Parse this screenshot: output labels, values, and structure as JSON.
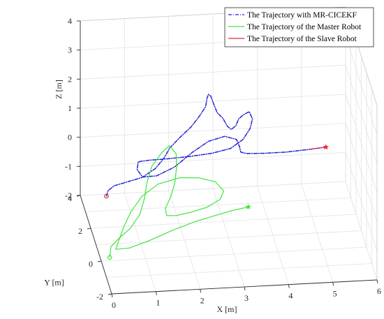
{
  "chart_data": {
    "type": "line",
    "projection": "3d",
    "title": "",
    "xlabel": "X [m]",
    "ylabel": "Y [m]",
    "zlabel": "Z [m]",
    "xlim": [
      0,
      6
    ],
    "ylim": [
      -2,
      4
    ],
    "zlim": [
      -2,
      4
    ],
    "x_ticks": [
      "0",
      "1",
      "2",
      "3",
      "4",
      "5",
      "6"
    ],
    "y_ticks": [
      "-2",
      "0",
      "2",
      "4"
    ],
    "z_ticks": [
      "-2",
      "-1",
      "0",
      "1",
      "2",
      "3",
      "4"
    ],
    "grid": true,
    "legend_position": "top-right",
    "series": [
      {
        "name": "The Trajectory with MR-CICEKF",
        "color": "#1f1fd6",
        "style": "dash-dot",
        "points": [
          [
            0.2,
            0.7,
            -0.18
          ],
          [
            0.25,
            0.8,
            -0.05
          ],
          [
            0.4,
            0.9,
            0.05
          ],
          [
            0.7,
            1.0,
            0.1
          ],
          [
            1.05,
            1.05,
            0.2
          ],
          [
            1.35,
            1.1,
            0.45
          ],
          [
            1.55,
            1.15,
            0.75
          ],
          [
            1.7,
            1.25,
            1.05
          ],
          [
            1.95,
            1.35,
            1.35
          ],
          [
            2.2,
            1.4,
            1.65
          ],
          [
            2.4,
            1.5,
            1.95
          ],
          [
            2.55,
            1.6,
            2.2
          ],
          [
            2.6,
            1.75,
            2.4
          ],
          [
            2.65,
            1.9,
            2.45
          ],
          [
            2.72,
            2.05,
            2.3
          ],
          [
            2.8,
            2.2,
            1.95
          ],
          [
            2.9,
            2.35,
            1.55
          ],
          [
            3.05,
            2.5,
            1.25
          ],
          [
            3.15,
            2.55,
            0.95
          ],
          [
            3.25,
            2.6,
            0.8
          ],
          [
            3.35,
            2.55,
            0.95
          ],
          [
            3.4,
            2.5,
            1.2
          ],
          [
            3.5,
            2.4,
            1.4
          ],
          [
            3.62,
            2.3,
            1.55
          ],
          [
            3.68,
            2.2,
            1.35
          ],
          [
            3.62,
            2.15,
            1.05
          ],
          [
            3.45,
            2.05,
            0.75
          ],
          [
            3.15,
            1.9,
            0.55
          ],
          [
            2.7,
            1.75,
            0.5
          ],
          [
            2.2,
            1.55,
            0.55
          ],
          [
            1.65,
            1.3,
            0.65
          ],
          [
            1.2,
            1.1,
            0.75
          ],
          [
            0.95,
            0.95,
            0.8
          ],
          [
            0.9,
            0.75,
            0.65
          ],
          [
            1.0,
            0.55,
            0.5
          ],
          [
            1.3,
            0.4,
            0.6
          ],
          [
            1.7,
            0.35,
            0.9
          ],
          [
            2.1,
            0.45,
            1.3
          ],
          [
            2.5,
            0.65,
            1.55
          ],
          [
            2.9,
            0.9,
            1.55
          ],
          [
            3.2,
            1.2,
            1.25
          ],
          [
            3.3,
            1.45,
            0.85
          ],
          [
            3.35,
            1.65,
            0.55
          ],
          [
            3.5,
            1.8,
            0.4
          ],
          [
            3.9,
            1.85,
            0.35
          ],
          [
            4.4,
            1.85,
            0.35
          ],
          [
            4.9,
            1.85,
            0.4
          ],
          [
            5.3,
            1.85,
            0.45
          ]
        ]
      },
      {
        "name": "The Trajectory of the Master Robot",
        "color": "#3ce63c",
        "style": "solid",
        "points": [
          [
            0.05,
            -1.2,
            -1.2
          ],
          [
            0.1,
            -1.0,
            -0.95
          ],
          [
            0.3,
            -0.8,
            -0.8
          ],
          [
            0.6,
            -0.55,
            -0.6
          ],
          [
            0.85,
            -0.2,
            -0.35
          ],
          [
            1.0,
            0.2,
            -0.05
          ],
          [
            1.1,
            0.55,
            0.3
          ],
          [
            1.25,
            0.9,
            0.65
          ],
          [
            1.5,
            1.15,
            0.95
          ],
          [
            1.7,
            1.3,
            1.1
          ],
          [
            1.85,
            1.3,
            0.8
          ],
          [
            1.85,
            1.25,
            0.35
          ],
          [
            1.8,
            1.15,
            -0.1
          ],
          [
            1.7,
            1.05,
            -0.5
          ],
          [
            1.55,
            0.85,
            -0.8
          ],
          [
            1.55,
            0.6,
            -0.9
          ],
          [
            1.75,
            0.4,
            -0.8
          ],
          [
            2.05,
            0.2,
            -0.6
          ],
          [
            2.4,
            0.1,
            -0.4
          ],
          [
            2.7,
            0.1,
            -0.15
          ],
          [
            2.8,
            0.25,
            0.05
          ],
          [
            2.65,
            0.55,
            0.2
          ],
          [
            2.3,
            0.85,
            0.2
          ],
          [
            1.9,
            1.0,
            0.15
          ],
          [
            1.4,
            0.95,
            0.0
          ],
          [
            1.0,
            0.7,
            -0.25
          ],
          [
            0.7,
            0.3,
            -0.55
          ],
          [
            0.5,
            -0.05,
            -0.85
          ],
          [
            0.35,
            -0.4,
            -1.1
          ],
          [
            0.25,
            -0.65,
            -1.25
          ],
          [
            0.55,
            -0.7,
            -1.2
          ],
          [
            1.0,
            -0.6,
            -1.05
          ],
          [
            1.55,
            -0.4,
            -0.85
          ],
          [
            2.1,
            -0.2,
            -0.7
          ],
          [
            2.6,
            -0.05,
            -0.6
          ],
          [
            3.0,
            0.1,
            -0.55
          ],
          [
            3.35,
            0.2,
            -0.52
          ]
        ]
      },
      {
        "name": "The Trajectory of the Slave Robot",
        "color": "#e8283c",
        "style": "solid",
        "points": [
          [
            4.95,
            1.85,
            0.41
          ],
          [
            5.1,
            1.85,
            0.43
          ],
          [
            5.3,
            1.85,
            0.45
          ]
        ]
      }
    ],
    "markers": [
      {
        "series": "The Trajectory with MR-CICEKF",
        "shape": "circle",
        "color": "#e8283c",
        "point": [
          0.2,
          0.7,
          -0.18
        ]
      },
      {
        "series": "The Trajectory of the Slave Robot",
        "shape": "star",
        "color": "#e8283c",
        "point": [
          5.3,
          1.85,
          0.45
        ]
      },
      {
        "series": "The Trajectory of the Master Robot",
        "shape": "circle",
        "color": "#3ce63c",
        "point": [
          0.05,
          -1.2,
          -1.2
        ]
      },
      {
        "series": "The Trajectory of the Master Robot",
        "shape": "star",
        "color": "#3ce63c",
        "point": [
          3.35,
          0.2,
          -0.52
        ]
      }
    ]
  }
}
